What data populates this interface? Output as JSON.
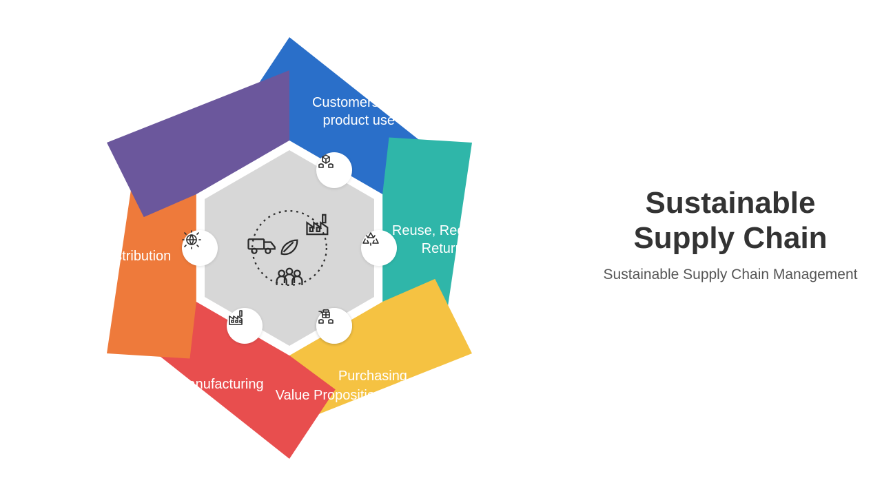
{
  "title": {
    "main": "Sustainable Supply Chain",
    "sub": "Sustainable Supply Chain Management",
    "main_color": "#333333",
    "sub_color": "#555555",
    "main_fontsize": 44,
    "sub_fontsize": 21
  },
  "diagram": {
    "type": "hexagon-cycle",
    "background": "#ffffff",
    "center_hex_fill": "#d7d7d7",
    "center_hex_border": "#ffffff",
    "center_hex_border_width": 14,
    "outer_radius": 300,
    "inner_radius": 142,
    "icon_circle_radius": 130,
    "segment_label_radius": 222,
    "label_color": "#ffffff",
    "label_fontsize": 20,
    "icon_circle_bg": "#ffffff",
    "icon_stroke": "#2b2b2b",
    "segments": [
      {
        "label": "Customers and product use",
        "color": "#2a6fc9",
        "icon": "hands-box"
      },
      {
        "label": "Reuse, Recycle, Return",
        "color": "#2fb6a9",
        "icon": "recycle"
      },
      {
        "label": "Purchasing",
        "color": "#f5c242",
        "icon": "cart"
      },
      {
        "label": "Manufacturing",
        "color": "#e84e4e",
        "icon": "factory"
      },
      {
        "label": "Distribution",
        "color": "#ee7a3b",
        "icon": "globe-arrows"
      },
      {
        "label": "Value Proposition",
        "color": "#6b579c",
        "icon": "hands-gift"
      }
    ],
    "center_icons": [
      "truck",
      "leaf",
      "plant",
      "people"
    ]
  }
}
